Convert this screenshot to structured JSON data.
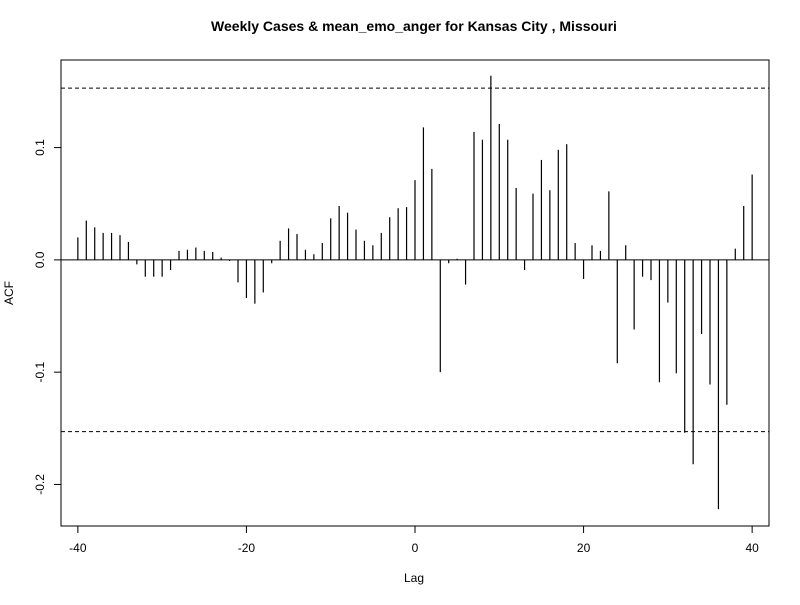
{
  "chart_data": {
    "type": "bar",
    "title": "Weekly Cases & mean_emo_anger for Kansas City , Missouri",
    "xlabel": "Lag",
    "ylabel": "ACF",
    "xlim": [
      -42,
      42
    ],
    "ylim": [
      -0.237,
      0.178
    ],
    "x_ticks": [
      -40,
      -20,
      0,
      20,
      40
    ],
    "x_tick_labels": [
      "-40",
      "-20",
      "0",
      "20",
      "40"
    ],
    "y_ticks": [
      -0.2,
      -0.1,
      0.0,
      0.1
    ],
    "y_tick_labels": [
      "-0.2",
      "-0.1",
      "0.0",
      "0.1"
    ],
    "confidence_bound": 0.153,
    "grid": false,
    "series": [
      {
        "lags": [
          -40,
          -39,
          -38,
          -37,
          -36,
          -35,
          -34,
          -33,
          -32,
          -31,
          -30,
          -29,
          -28,
          -27,
          -26,
          -25,
          -24,
          -23,
          -22,
          -21,
          -20,
          -19,
          -18,
          -17,
          -16,
          -15,
          -14,
          -13,
          -12,
          -11,
          -10,
          -9,
          -8,
          -7,
          -6,
          -5,
          -4,
          -3,
          -2,
          -1,
          0,
          1,
          2,
          3,
          4,
          5,
          6,
          7,
          8,
          9,
          10,
          11,
          12,
          13,
          14,
          15,
          16,
          17,
          18,
          19,
          20,
          21,
          22,
          23,
          24,
          25,
          26,
          27,
          28,
          29,
          30,
          31,
          32,
          33,
          34,
          35,
          36,
          37,
          38,
          39,
          40
        ],
        "values": [
          0.02,
          0.035,
          0.029,
          0.024,
          0.024,
          0.022,
          0.016,
          -0.004,
          -0.015,
          -0.015,
          -0.015,
          -0.009,
          0.008,
          0.009,
          0.011,
          0.008,
          0.007,
          0.002,
          -0.001,
          -0.02,
          -0.034,
          -0.039,
          -0.029,
          -0.003,
          0.017,
          0.028,
          0.023,
          0.009,
          0.005,
          0.015,
          0.037,
          0.048,
          0.042,
          0.027,
          0.017,
          0.013,
          0.024,
          0.038,
          0.046,
          0.047,
          0.071,
          0.118,
          0.081,
          -0.1,
          -0.003,
          0.001,
          -0.022,
          0.114,
          0.107,
          0.164,
          0.121,
          0.107,
          0.064,
          -0.009,
          0.059,
          0.089,
          0.062,
          0.098,
          0.103,
          0.015,
          -0.017,
          0.013,
          0.008,
          0.061,
          -0.092,
          0.013,
          -0.062,
          -0.015,
          -0.018,
          -0.109,
          -0.038,
          -0.101,
          -0.154,
          -0.182,
          -0.066,
          -0.111,
          -0.222,
          -0.129,
          0.01,
          0.048,
          0.076
        ]
      }
    ]
  }
}
